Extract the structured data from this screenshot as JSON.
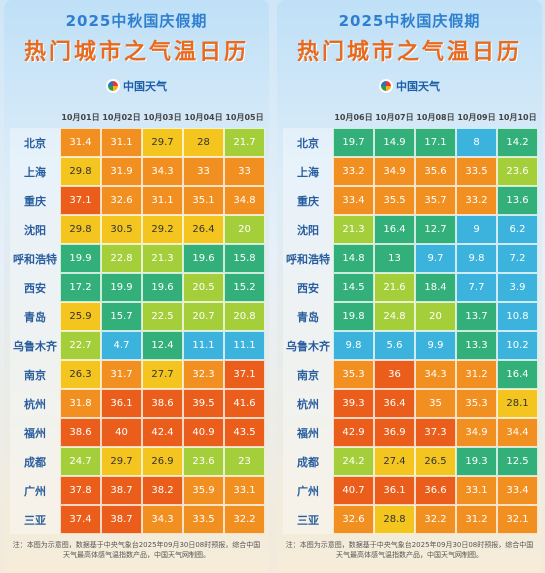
{
  "title_line1": "2025中秋国庆假期",
  "title_line2": "热门城市之气温日历",
  "logo_text": "中国天气",
  "colors": {
    "c20": "#33b07a",
    "c25": "#a5cf3a",
    "c30": "#f3c51e",
    "c35": "#f18f21",
    "c40": "#ea5d1b",
    "cold": "#3bb3dd"
  },
  "left": {
    "dates": [
      "10月01日",
      "10月02日",
      "10月03日",
      "10月04日",
      "10月05日"
    ],
    "rows": [
      {
        "city": "北京",
        "values": [
          "31.4",
          "31.1",
          "29.7",
          "28",
          "21.7"
        ]
      },
      {
        "city": "上海",
        "values": [
          "29.8",
          "31.9",
          "34.3",
          "33",
          "33"
        ]
      },
      {
        "city": "重庆",
        "values": [
          "37.1",
          "32.6",
          "31.1",
          "35.1",
          "34.8"
        ]
      },
      {
        "city": "沈阳",
        "values": [
          "29.8",
          "30.5",
          "29.2",
          "26.4",
          "20"
        ]
      },
      {
        "city": "呼和浩特",
        "values": [
          "19.9",
          "22.8",
          "21.3",
          "19.6",
          "15.8"
        ]
      },
      {
        "city": "西安",
        "values": [
          "17.2",
          "19.9",
          "19.6",
          "20.5",
          "15.2"
        ]
      },
      {
        "city": "青岛",
        "values": [
          "25.9",
          "15.7",
          "22.5",
          "20.7",
          "20.8"
        ]
      },
      {
        "city": "乌鲁木齐",
        "values": [
          "22.7",
          "4.7",
          "12.4",
          "11.1",
          "11.1"
        ]
      },
      {
        "city": "南京",
        "values": [
          "26.3",
          "31.7",
          "27.7",
          "32.3",
          "37.1"
        ]
      },
      {
        "city": "杭州",
        "values": [
          "31.8",
          "36.1",
          "38.6",
          "39.5",
          "41.6"
        ]
      },
      {
        "city": "福州",
        "values": [
          "38.6",
          "40",
          "42.4",
          "40.9",
          "43.5"
        ]
      },
      {
        "city": "成都",
        "values": [
          "24.7",
          "29.7",
          "26.9",
          "23.6",
          "23"
        ]
      },
      {
        "city": "广州",
        "values": [
          "37.8",
          "38.7",
          "38.2",
          "35.9",
          "33.1"
        ]
      },
      {
        "city": "三亚",
        "values": [
          "37.4",
          "38.7",
          "34.3",
          "33.5",
          "32.2"
        ]
      }
    ],
    "note": "注：本图为示意图，数据基于中央气象台2025年09月30日08时预报，综合中国天气最高体感气温指数产品，中国天气网制图。"
  },
  "right": {
    "dates": [
      "10月06日",
      "10月07日",
      "10月08日",
      "10月09日",
      "10月10日"
    ],
    "rows": [
      {
        "city": "北京",
        "values": [
          "19.7",
          "14.9",
          "17.1",
          "8",
          "14.2"
        ]
      },
      {
        "city": "上海",
        "values": [
          "33.2",
          "34.9",
          "35.6",
          "33.5",
          "23.6"
        ]
      },
      {
        "city": "重庆",
        "values": [
          "33.4",
          "35.5",
          "35.7",
          "33.2",
          "13.6"
        ]
      },
      {
        "city": "沈阳",
        "values": [
          "21.3",
          "16.4",
          "12.7",
          "9",
          "6.2"
        ]
      },
      {
        "city": "呼和浩特",
        "values": [
          "14.8",
          "13",
          "9.7",
          "9.8",
          "7.2"
        ]
      },
      {
        "city": "西安",
        "values": [
          "14.5",
          "21.6",
          "18.4",
          "7.7",
          "3.9"
        ]
      },
      {
        "city": "青岛",
        "values": [
          "19.8",
          "24.8",
          "20",
          "13.7",
          "10.8"
        ]
      },
      {
        "city": "乌鲁木齐",
        "values": [
          "9.8",
          "5.6",
          "9.9",
          "13.3",
          "10.2"
        ]
      },
      {
        "city": "南京",
        "values": [
          "35.3",
          "36",
          "34.3",
          "31.2",
          "16.4"
        ]
      },
      {
        "city": "杭州",
        "values": [
          "39.3",
          "36.4",
          "35",
          "35.3",
          "28.1"
        ]
      },
      {
        "city": "福州",
        "values": [
          "42.9",
          "36.9",
          "37.3",
          "34.9",
          "34.4"
        ]
      },
      {
        "city": "成都",
        "values": [
          "24.2",
          "27.4",
          "26.5",
          "19.3",
          "12.5"
        ]
      },
      {
        "city": "广州",
        "values": [
          "40.7",
          "36.1",
          "36.6",
          "33.1",
          "33.4"
        ]
      },
      {
        "city": "三亚",
        "values": [
          "32.6",
          "28.8",
          "32.2",
          "31.2",
          "32.1"
        ]
      }
    ],
    "note": "注：本图为示意图，数据基于中央气象台2025年09月30日08时预报，综合中国天气最高体感气温指数产品，中国天气网制图。"
  }
}
